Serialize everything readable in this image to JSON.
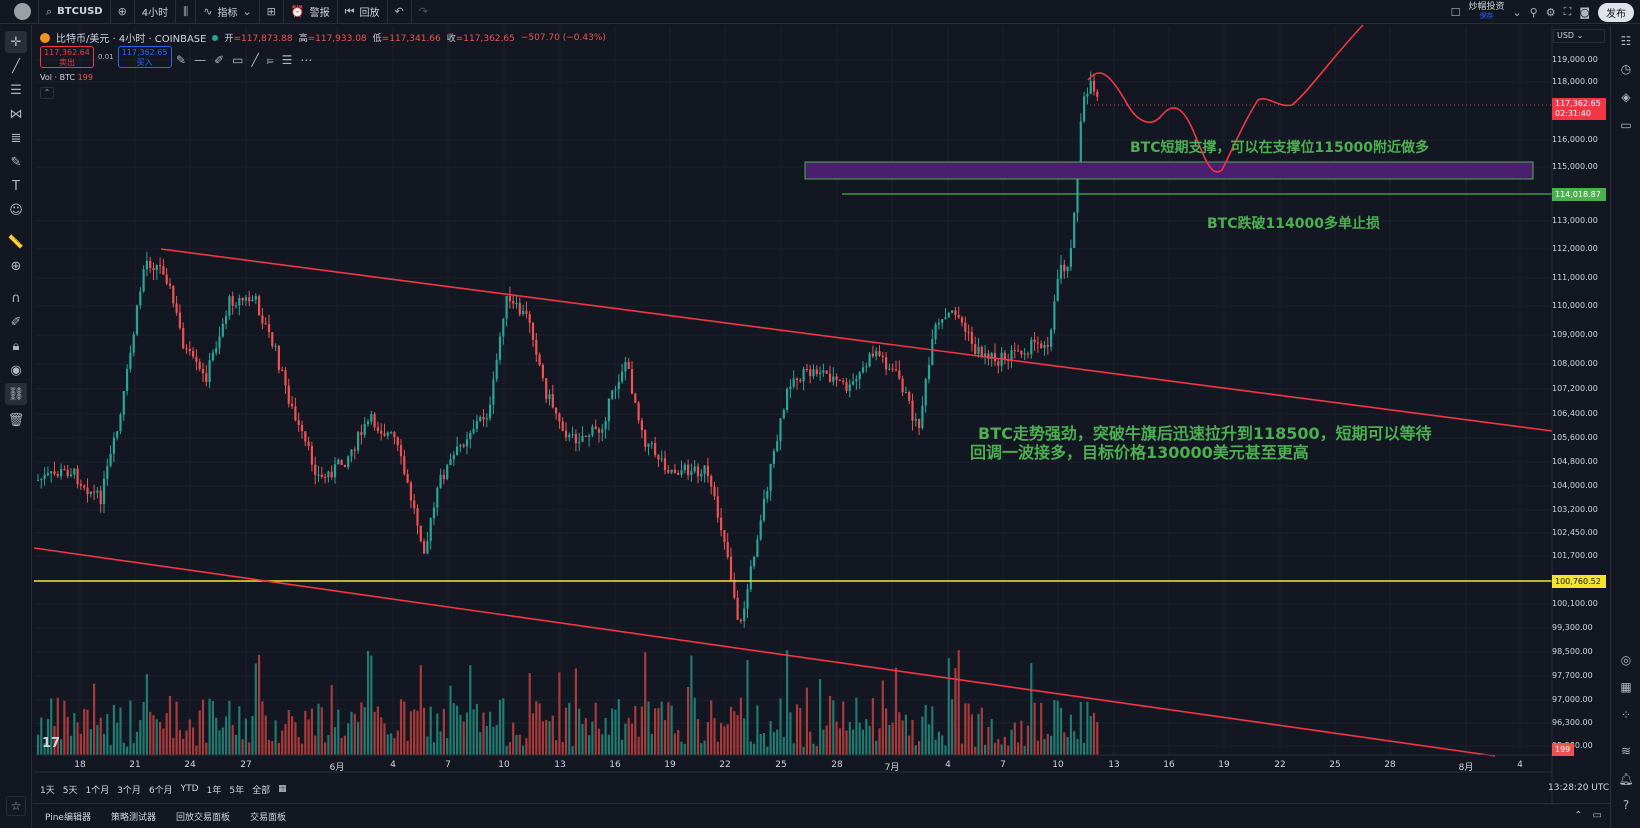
{
  "topbar": {
    "symbol": "BTCUSD",
    "interval": "4小时",
    "indicators_label": "指标",
    "alert_label": "警报",
    "replay_label": "回放",
    "broker_name": "炒帽投资",
    "broker_sub": "保存",
    "publish_label": "发布"
  },
  "legend": {
    "title": "比特币/美元 · 4小时 · COINBASE",
    "open_label": "开",
    "open": "=117,873.88",
    "high_label": "高",
    "high": "=117,933.08",
    "low_label": "低",
    "low": "=117,341.66",
    "close_label": "收",
    "close": "=117,362.65",
    "change": "−507.70 (−0.43%)"
  },
  "order": {
    "sell_price": "117,362.64",
    "sell_label": "卖出",
    "spread": "0.01",
    "buy_price": "117,362.65",
    "buy_label": "买入"
  },
  "volume": {
    "label": "Vol · BTC",
    "value": "199"
  },
  "currency": "USD",
  "annotations": {
    "support": "BTC短期支撑，可以在支撑位115000附近做多",
    "stop": "BTC跌破114000多单止损",
    "main_line1": "BTC走势强劲，突破牛旗后迅速拉升到118500，短期可以等待",
    "main_line2": "回调一波接多，目标价格130000美元甚至更高"
  },
  "price_axis": [
    "119,000.00",
    "118,000.00",
    "116,000.00",
    "115,000.00",
    "113,000.00",
    "112,000.00",
    "111,000.00",
    "110,000.00",
    "109,000.00",
    "108,000.00",
    "107,200.00",
    "106,400.00",
    "105,600.00",
    "104,800.00",
    "104,000.00",
    "103,200.00",
    "102,450.00",
    "101,700.00",
    "100,100.00",
    "99,300.00",
    "98,500.00",
    "97,700.00",
    "97,000.00",
    "96,300.00",
    "95,580.00"
  ],
  "price_tags": {
    "current": "117,362.65",
    "countdown": "02:31:40",
    "green_line": "114,018.87",
    "yellow_line": "100,760.52",
    "volume": "199"
  },
  "time_axis": [
    "18",
    "21",
    "24",
    "27",
    "6月",
    "4",
    "7",
    "10",
    "13",
    "16",
    "19",
    "22",
    "25",
    "28",
    "7月",
    "4",
    "7",
    "10",
    "13",
    "16",
    "19",
    "22",
    "25",
    "28",
    "8月",
    "4"
  ],
  "range_buttons": [
    "1天",
    "5天",
    "1个月",
    "3个月",
    "6个月",
    "YTD",
    "1年",
    "5年",
    "全部"
  ],
  "clock": "13:28:20 UTC",
  "bottom_tabs": [
    "Pine编辑器",
    "策略测试器",
    "回放交易面板",
    "交易面板"
  ],
  "colors": {
    "bg": "#131722",
    "up": "#26a69a",
    "down": "#ef5350",
    "trend_line": "#f23645",
    "support_line": "#4caf50",
    "yellow_line": "#f5e52a",
    "zone": "#4a1f6e",
    "annotation": "#4caf50"
  },
  "icons": [
    "search-icon",
    "plus-icon",
    "candles-icon",
    "indicators-icon",
    "layout-icon",
    "alarm-icon",
    "replay-icon",
    "undo-icon",
    "redo-icon",
    "fullscreen-icon",
    "camera-icon",
    "settings-icon"
  ]
}
